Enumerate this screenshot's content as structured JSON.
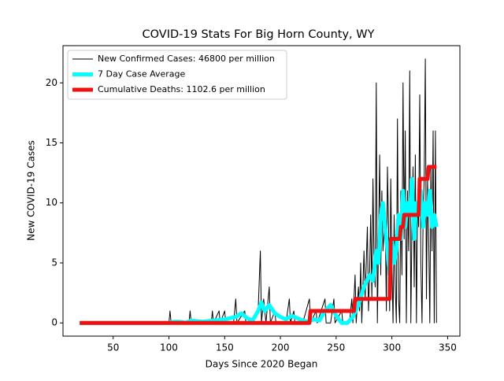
{
  "chart_data": {
    "type": "line",
    "title": "COVID-19 Stats For Big Horn County, WY",
    "xlabel": "Days Since 2020 Began",
    "ylabel": "New COVID-19 Cases",
    "xlim": [
      5,
      361
    ],
    "ylim": [
      -1.1,
      23.1
    ],
    "xticks": [
      50,
      100,
      150,
      200,
      250,
      300,
      350
    ],
    "yticks": [
      0,
      5,
      10,
      15,
      20
    ],
    "legend": "upper left",
    "series": [
      {
        "name": "New Confirmed Cases: 46800 per million",
        "color": "#000000",
        "width": 1,
        "x": [
          20,
          100,
          101,
          102,
          118,
          119,
          120,
          138,
          139,
          140,
          145,
          146,
          150,
          151,
          158,
          160,
          161,
          168,
          169,
          175,
          180,
          182,
          183,
          185,
          187,
          190,
          191,
          195,
          196,
          205,
          208,
          209,
          212,
          213,
          220,
          226,
          227,
          232,
          233,
          240,
          241,
          245,
          248,
          249,
          255,
          256,
          262,
          264,
          265,
          267,
          268,
          270,
          271,
          272,
          273,
          275,
          276,
          278,
          279,
          280,
          281,
          282,
          283,
          284,
          285,
          286,
          287,
          288,
          289,
          290,
          291,
          292,
          294,
          295,
          296,
          297,
          298,
          299,
          300,
          301,
          302,
          303,
          304,
          305,
          306,
          307,
          308,
          309,
          310,
          311,
          312,
          313,
          314,
          315,
          316,
          317,
          318,
          319,
          320,
          321,
          322,
          323,
          324,
          325,
          326,
          327,
          328,
          329,
          330,
          331,
          332,
          333,
          334,
          335,
          336,
          337,
          338,
          339,
          340
        ],
        "values": [
          0,
          0,
          1,
          0,
          0,
          1,
          0,
          0,
          1,
          0,
          1,
          0,
          1,
          0,
          0,
          2,
          0,
          1,
          0,
          0,
          1,
          6,
          0,
          2,
          0,
          3,
          0,
          1,
          0,
          0,
          2,
          0,
          1,
          0,
          0,
          2,
          0,
          1,
          0,
          2,
          0,
          0,
          2,
          0,
          1,
          0,
          0,
          2,
          0,
          4,
          0,
          3,
          1,
          5,
          0,
          6,
          2,
          8,
          1,
          4,
          9,
          2,
          12,
          5,
          3,
          20,
          0,
          7,
          14,
          4,
          11,
          6,
          9,
          1,
          13,
          8,
          1,
          12,
          5,
          0,
          9,
          3,
          0,
          17,
          2,
          0,
          11,
          4,
          20,
          7,
          16,
          0,
          11,
          6,
          21,
          0,
          8,
          13,
          3,
          14,
          0,
          10,
          8,
          19,
          5,
          0,
          9,
          12,
          22,
          2,
          12,
          7,
          0,
          13,
          6,
          16,
          0,
          16,
          0
        ]
      },
      {
        "name": "7 Day Case Average",
        "color": "#00ffff",
        "width": 5,
        "x": [
          20,
          100,
          105,
          110,
          115,
          120,
          130,
          140,
          150,
          160,
          165,
          170,
          175,
          180,
          183,
          186,
          190,
          195,
          200,
          205,
          210,
          215,
          220,
          225,
          230,
          235,
          240,
          245,
          250,
          255,
          260,
          265,
          270,
          275,
          280,
          283,
          286,
          288,
          290,
          292,
          294,
          296,
          298,
          300,
          302,
          304,
          306,
          308,
          310,
          312,
          314,
          316,
          318,
          320,
          322,
          324,
          326,
          328,
          330,
          332,
          334,
          336,
          338,
          340
        ],
        "values": [
          0,
          0,
          0.1,
          0.1,
          0,
          0.2,
          0.1,
          0.2,
          0.3,
          0.5,
          0.8,
          0.4,
          0.2,
          1,
          1.7,
          1,
          1.5,
          0.8,
          0.5,
          0.3,
          0.6,
          0.4,
          0.2,
          0.1,
          0.3,
          0.2,
          1,
          1.5,
          0.6,
          0,
          0,
          0.5,
          1.5,
          3,
          4,
          3.5,
          6,
          5,
          9,
          10,
          8,
          6,
          4,
          7,
          5,
          6,
          9,
          7,
          11,
          8,
          10,
          9,
          12,
          7,
          10,
          9,
          11,
          8,
          10,
          9,
          11,
          8,
          9,
          8
        ]
      },
      {
        "name": "Cumulative Deaths: 1102.6 per million",
        "color": "#ee1111",
        "width": 5,
        "x": [
          20,
          226,
          227,
          266,
          267,
          298,
          299,
          307,
          308,
          310,
          311,
          324,
          325,
          332,
          333,
          340
        ],
        "values": [
          0,
          0,
          1,
          1,
          2,
          2,
          7,
          7,
          8,
          8,
          9,
          9,
          12,
          12,
          13,
          13
        ]
      }
    ]
  }
}
